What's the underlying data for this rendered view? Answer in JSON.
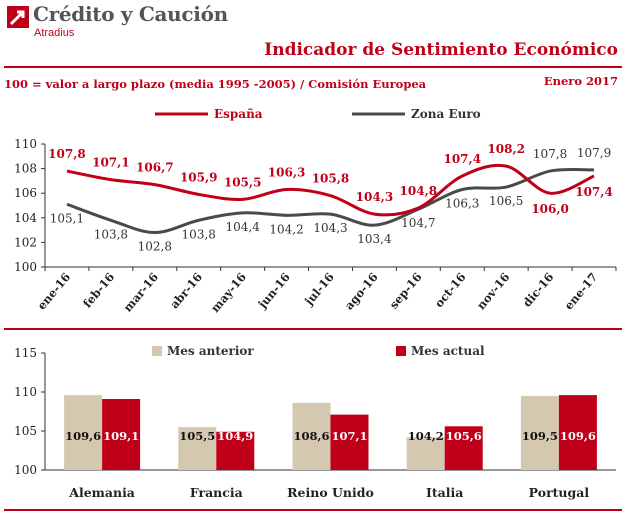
{
  "header": {
    "brand_name": "Crédito y Caución",
    "brand_sub": "Atradius",
    "title": "Indicador de Sentimiento Económico",
    "subtitle": "100 = valor a largo plazo (media 1995 -2005) / Comisión Europea",
    "date": "Enero 2017"
  },
  "colors": {
    "brand_red": "#c00018",
    "line_espana": "#c00018",
    "line_zona": "#4a4a4a",
    "bar_prev": "#d5c8b0",
    "bar_curr": "#c00018"
  },
  "chart_data": [
    {
      "type": "line",
      "x": [
        "ene-16",
        "feb-16",
        "mar-16",
        "abr-16",
        "may-16",
        "jun-16",
        "jul-16",
        "ago-16",
        "sep-16",
        "oct-16",
        "nov-16",
        "dic-16",
        "ene-17"
      ],
      "series": [
        {
          "name": "España",
          "values": [
            107.8,
            107.1,
            106.7,
            105.9,
            105.5,
            106.3,
            105.8,
            104.3,
            104.8,
            107.4,
            108.2,
            106.0,
            107.4
          ]
        },
        {
          "name": "Zona Euro",
          "values": [
            105.1,
            103.8,
            102.8,
            103.8,
            104.4,
            104.2,
            104.3,
            103.4,
            104.7,
            106.3,
            106.5,
            107.8,
            107.9
          ]
        }
      ],
      "data_labels": {
        "España": [
          "107,8",
          "107,1",
          "106,7",
          "105,9",
          "105,5",
          "106,3",
          "105,8",
          "104,3",
          "104,8",
          "107,4",
          "108,2",
          "106,0",
          "107,4"
        ],
        "Zona Euro": [
          "105,1",
          "103,8",
          "102,8",
          "103,8",
          "104,4",
          "104,2",
          "104,3",
          "103,4",
          "104,7",
          "106,3",
          "106,5",
          "107,8",
          "107,9"
        ]
      },
      "ylim": [
        100,
        110
      ],
      "yticks": [
        "100",
        "102",
        "104",
        "106",
        "108",
        "110"
      ],
      "grid": false,
      "legend": "top"
    },
    {
      "type": "bar",
      "categories": [
        "Alemania",
        "Francia",
        "Reino Unido",
        "Italia",
        "Portugal"
      ],
      "series": [
        {
          "name": "Mes anterior",
          "values": [
            109.6,
            105.5,
            108.6,
            104.2,
            109.5
          ]
        },
        {
          "name": "Mes actual",
          "values": [
            109.1,
            104.9,
            107.1,
            105.6,
            109.6
          ]
        }
      ],
      "data_labels": {
        "Mes anterior": [
          "109,6",
          "105,5",
          "108,6",
          "104,2",
          "109,5"
        ],
        "Mes actual": [
          "109,1",
          "104,9",
          "107,1",
          "105,6",
          "109,6"
        ]
      },
      "ylim": [
        100,
        115
      ],
      "yticks": [
        "100",
        "105",
        "110",
        "115"
      ],
      "grid": false,
      "legend": "top"
    }
  ]
}
